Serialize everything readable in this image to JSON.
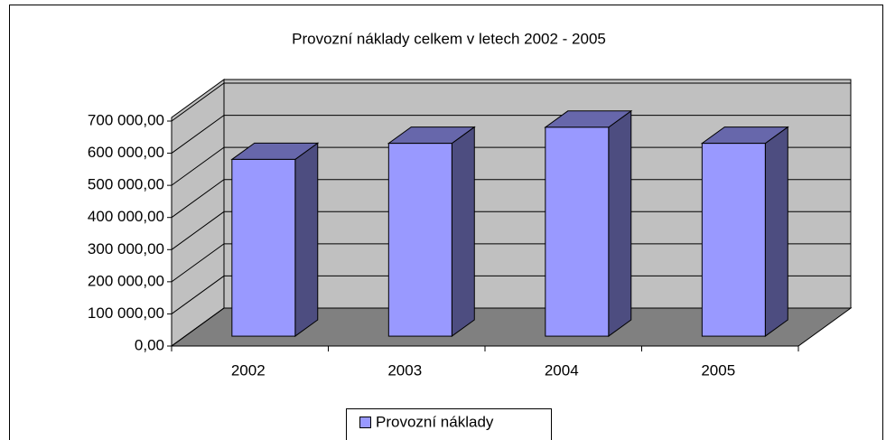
{
  "chart_data": {
    "type": "bar3d",
    "title": "Provozní náklady celkem v letech 2002 - 2005",
    "categories": [
      "2002",
      "2003",
      "2004",
      "2005"
    ],
    "series": [
      {
        "name": "Provozní náklady",
        "color": "#9999ff",
        "values": [
          550000,
          600000,
          650000,
          600000
        ]
      }
    ],
    "ylim": [
      0,
      700000
    ],
    "yticks": [
      {
        "value": 0,
        "label": "0,00"
      },
      {
        "value": 100000,
        "label": "100 000,00"
      },
      {
        "value": 200000,
        "label": "200 000,00"
      },
      {
        "value": 300000,
        "label": "300 000,00"
      },
      {
        "value": 400000,
        "label": "400 000,00"
      },
      {
        "value": 500000,
        "label": "500 000,00"
      },
      {
        "value": 600000,
        "label": "600 000,00"
      },
      {
        "value": 700000,
        "label": "700 000,00"
      }
    ],
    "grid": true,
    "legend": "bottom"
  }
}
